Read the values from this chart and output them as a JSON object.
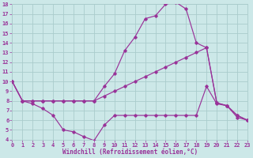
{
  "background_color": "#cce8e8",
  "grid_color": "#aacccc",
  "line_color": "#993399",
  "marker": "D",
  "markersize": 1.8,
  "linewidth": 0.85,
  "xlim": [
    0,
    23
  ],
  "ylim": [
    4,
    18
  ],
  "xlabel": "Windchill (Refroidissement éolien,°C)",
  "xticks": [
    0,
    1,
    2,
    3,
    4,
    5,
    6,
    7,
    8,
    9,
    10,
    11,
    12,
    13,
    14,
    15,
    16,
    17,
    18,
    19,
    20,
    21,
    22,
    23
  ],
  "yticks": [
    4,
    5,
    6,
    7,
    8,
    9,
    10,
    11,
    12,
    13,
    14,
    15,
    16,
    17,
    18
  ],
  "line_peak_x": [
    0,
    1,
    2,
    3,
    4,
    5,
    6,
    7,
    8,
    9,
    10,
    11,
    12,
    13,
    14,
    15,
    16,
    17,
    18,
    19,
    20,
    21,
    22,
    23
  ],
  "line_peak_y": [
    10,
    8.0,
    8.0,
    8.0,
    8.0,
    8.0,
    8.0,
    8.0,
    8.0,
    9.5,
    10.8,
    13.2,
    14.6,
    16.5,
    16.8,
    18.0,
    18.2,
    17.5,
    14.0,
    13.5,
    7.8,
    7.5,
    6.5,
    6.0
  ],
  "line_diag_x": [
    0,
    1,
    2,
    3,
    4,
    5,
    6,
    7,
    8,
    9,
    10,
    11,
    12,
    13,
    14,
    15,
    16,
    17,
    18,
    19,
    20,
    21,
    22,
    23
  ],
  "line_diag_y": [
    10,
    8.0,
    8.0,
    8.0,
    8.0,
    8.0,
    8.0,
    8.0,
    8.0,
    8.5,
    9.0,
    9.5,
    10.0,
    10.5,
    11.0,
    11.5,
    12.0,
    12.5,
    13.0,
    13.5,
    7.8,
    7.5,
    6.5,
    6.0
  ],
  "line_wavy_x": [
    0,
    1,
    2,
    3,
    4,
    5,
    6,
    7,
    8,
    9,
    10,
    11,
    12,
    13,
    14,
    15,
    16,
    17,
    18,
    19,
    20,
    21,
    22,
    23
  ],
  "line_wavy_y": [
    10,
    8.0,
    7.7,
    7.2,
    6.5,
    5.0,
    4.8,
    4.3,
    3.9,
    5.5,
    6.5,
    6.5,
    6.5,
    6.5,
    6.5,
    6.5,
    6.5,
    6.5,
    6.5,
    9.5,
    7.7,
    7.5,
    6.3,
    6.0
  ]
}
